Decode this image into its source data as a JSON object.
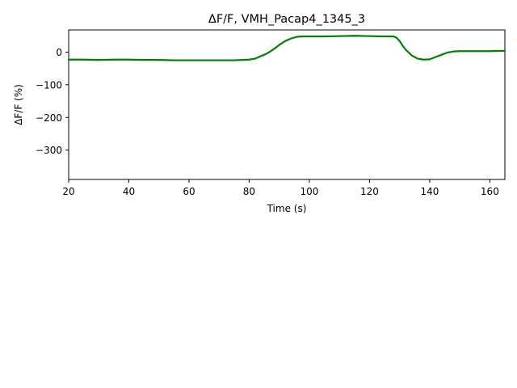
{
  "chart_data": {
    "type": "line",
    "title": "ΔF/F, VMH_Pacap4_1345_3",
    "xlabel": "Time (s)",
    "ylabel": "ΔF/F (%)",
    "xlim": [
      20,
      165
    ],
    "ylim": [
      -390,
      68
    ],
    "xticks": [
      20,
      40,
      60,
      80,
      100,
      120,
      140,
      160
    ],
    "yticks": [
      0,
      -100,
      -200,
      -300
    ],
    "xtick_labels": [
      "20",
      "40",
      "60",
      "80",
      "100",
      "120",
      "140",
      "160"
    ],
    "ytick_labels": [
      "0",
      "−100",
      "−200",
      "−300"
    ],
    "grid": false,
    "series": [
      {
        "color": "#008000",
        "x": [
          20,
          25,
          30,
          35,
          40,
          45,
          50,
          55,
          60,
          65,
          70,
          75,
          80,
          82,
          84,
          86,
          88,
          90,
          92,
          94,
          96,
          98,
          100,
          105,
          110,
          115,
          120,
          125,
          128,
          129,
          130,
          131,
          132,
          134,
          136,
          138,
          140,
          142,
          144,
          146,
          148,
          150,
          155,
          160,
          165
        ],
        "y": [
          -23,
          -23,
          -24,
          -23,
          -23,
          -24,
          -24,
          -25,
          -25,
          -25,
          -25,
          -25,
          -23,
          -20,
          -12,
          -4,
          8,
          22,
          34,
          42,
          47,
          48,
          48,
          48,
          49,
          50,
          49,
          48,
          48,
          44,
          34,
          20,
          8,
          -10,
          -20,
          -23,
          -22,
          -15,
          -8,
          -1,
          2,
          3,
          3,
          3,
          4
        ]
      }
    ]
  }
}
